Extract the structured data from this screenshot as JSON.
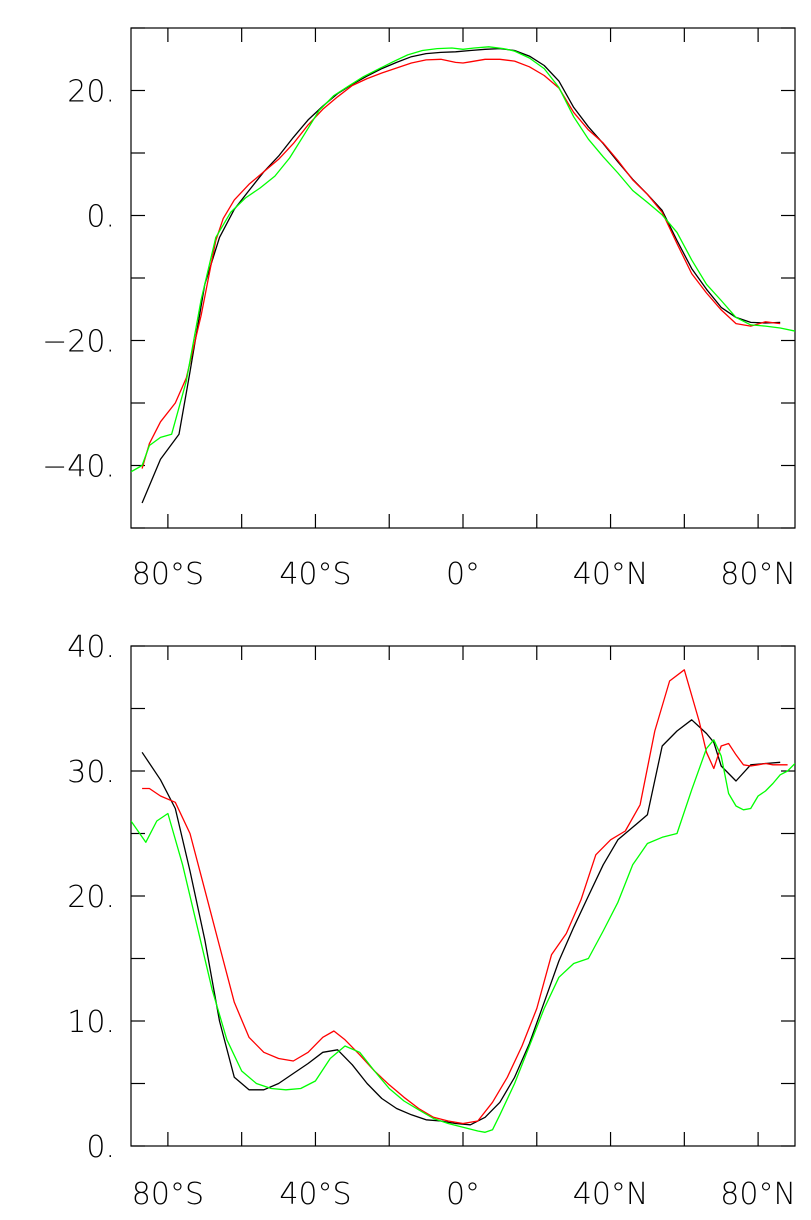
{
  "chart_data": [
    {
      "type": "line",
      "xlim": [
        -90,
        90
      ],
      "ylim": [
        -50,
        30
      ],
      "x_ticks": [
        -80,
        -40,
        0,
        40,
        80
      ],
      "x_tick_labels": [
        "80°S",
        "40°S",
        "0°",
        "40°N",
        "80°N"
      ],
      "x_minor_ticks": [
        -60,
        -20,
        20,
        60
      ],
      "y_ticks": [
        20,
        0,
        -20,
        -40
      ],
      "y_tick_labels": [
        "20.",
        "0.",
        "−20.",
        "−40."
      ],
      "y_minor_ticks": [
        30,
        10,
        -10,
        -30,
        -50
      ],
      "grid": false,
      "series": [
        {
          "color": "#000000",
          "x": [
            -87,
            -82,
            -77,
            -74,
            -70,
            -66,
            -62,
            -58,
            -54,
            -50,
            -46,
            -42,
            -38,
            -34,
            -30,
            -26,
            -22,
            -18,
            -14,
            -10,
            -6,
            -2,
            2,
            6,
            10,
            14,
            18,
            22,
            26,
            30,
            34,
            38,
            42,
            46,
            50,
            54,
            58,
            62,
            66,
            70,
            74,
            78,
            82,
            86
          ],
          "y": [
            -46,
            -39,
            -35,
            -25,
            -11,
            -3.5,
            1,
            4,
            7,
            9.5,
            12.5,
            15.3,
            17.5,
            19.5,
            21,
            22.3,
            23.5,
            24.5,
            25.4,
            25.9,
            26.1,
            26.2,
            26.4,
            26.6,
            26.7,
            26.4,
            25.5,
            24,
            21.5,
            17.3,
            14.2,
            11.5,
            8.6,
            5.8,
            3.4,
            0.8,
            -4,
            -8.5,
            -11.8,
            -14.7,
            -16.3,
            -17.1,
            -17.2,
            -17.1
          ]
        },
        {
          "color": "#ff0000",
          "x": [
            -87,
            -85,
            -82,
            -78,
            -75,
            -71,
            -67,
            -65,
            -62,
            -58,
            -54,
            -50,
            -46,
            -42,
            -38,
            -34,
            -30,
            -26,
            -22,
            -18,
            -14,
            -10,
            -6,
            -2,
            0,
            2,
            6,
            10,
            14,
            18,
            22,
            26,
            30,
            34,
            38,
            42,
            46,
            50,
            54,
            58,
            62,
            66,
            70,
            74,
            78,
            82,
            86
          ],
          "y": [
            -40.5,
            -36.5,
            -33,
            -30,
            -26,
            -16,
            -4,
            -0.5,
            2.5,
            5,
            7,
            9,
            11.5,
            14.5,
            17,
            19,
            20.8,
            21.9,
            22.8,
            23.6,
            24.4,
            24.9,
            25,
            24.5,
            24.4,
            24.6,
            25,
            25,
            24.7,
            23.8,
            22.4,
            20.4,
            16.5,
            13.7,
            11.6,
            8.8,
            5.7,
            3.4,
            0.5,
            -4.5,
            -9.3,
            -12.4,
            -15.1,
            -17.3,
            -17.7,
            -17,
            -17.3
          ]
        },
        {
          "color": "#00ff00",
          "x": [
            -90,
            -87,
            -85,
            -82,
            -79,
            -75,
            -71,
            -67,
            -63,
            -59,
            -55,
            -51,
            -47,
            -43,
            -39,
            -35,
            -31,
            -27,
            -23,
            -19,
            -15,
            -11,
            -7,
            -3,
            0,
            3,
            7,
            11,
            14,
            18,
            22,
            26,
            30,
            34,
            38,
            42,
            46,
            50,
            54,
            58,
            62,
            66,
            70,
            74,
            78,
            82,
            86,
            90
          ],
          "y": [
            -41,
            -40,
            -36.8,
            -35.5,
            -35,
            -26.5,
            -13.5,
            -3.5,
            0.5,
            2.8,
            4.4,
            6.3,
            9.2,
            13,
            16.8,
            19.2,
            20.7,
            22.2,
            23.4,
            24.6,
            25.7,
            26.4,
            26.7,
            26.8,
            26.6,
            26.8,
            27,
            26.7,
            26.3,
            25.2,
            23.5,
            20.5,
            15.8,
            12.2,
            9.4,
            6.8,
            4,
            2.1,
            0.1,
            -2.7,
            -7.1,
            -11,
            -13.6,
            -16.3,
            -17.5,
            -17.7,
            -18,
            -18.5
          ]
        }
      ]
    },
    {
      "type": "line",
      "xlim": [
        -90,
        90
      ],
      "ylim": [
        0,
        40
      ],
      "x_ticks": [
        -80,
        -40,
        0,
        40,
        80
      ],
      "x_tick_labels": [
        "80°S",
        "40°S",
        "0°",
        "40°N",
        "80°N"
      ],
      "x_minor_ticks": [
        -60,
        -20,
        20,
        60
      ],
      "y_ticks": [
        40,
        30,
        20,
        10,
        0
      ],
      "y_tick_labels": [
        "40.",
        "30.",
        "20.",
        "10.",
        "0."
      ],
      "y_minor_ticks": [
        35,
        25,
        15,
        5
      ],
      "grid": false,
      "series": [
        {
          "color": "#000000",
          "x": [
            -87,
            -82,
            -78,
            -74,
            -70,
            -66,
            -62,
            -58,
            -54,
            -50,
            -46,
            -42,
            -38,
            -34,
            -30,
            -26,
            -22,
            -18,
            -14,
            -10,
            -6,
            -2,
            2,
            6,
            10,
            14,
            18,
            22,
            26,
            30,
            34,
            38,
            42,
            46,
            50,
            54,
            58,
            62,
            66,
            68,
            70,
            74,
            78,
            82,
            86
          ],
          "y": [
            31.5,
            29.3,
            27,
            22,
            16.5,
            10,
            5.5,
            4.5,
            4.5,
            5,
            5.8,
            6.6,
            7.5,
            7.7,
            6.5,
            5,
            3.8,
            3,
            2.5,
            2.1,
            2,
            1.8,
            1.7,
            2.3,
            3.5,
            5.5,
            8.2,
            11.5,
            14.8,
            17.5,
            20,
            22.5,
            24.5,
            25.5,
            26.5,
            32,
            33.2,
            34.1,
            33,
            32.3,
            30.4,
            29.2,
            30.5,
            30.6,
            30.7
          ]
        },
        {
          "color": "#ff0000",
          "x": [
            -87,
            -85,
            -82,
            -78,
            -74,
            -70,
            -66,
            -62,
            -58,
            -54,
            -50,
            -46,
            -42,
            -38,
            -35,
            -32,
            -28,
            -24,
            -20,
            -16,
            -12,
            -8,
            -4,
            0,
            4,
            8,
            12,
            16,
            20,
            24,
            28,
            32,
            36,
            40,
            44,
            48,
            52,
            56,
            60,
            64,
            66,
            68,
            70,
            72,
            74,
            76,
            78,
            80,
            82,
            84,
            88
          ],
          "y": [
            28.6,
            28.6,
            28,
            27.5,
            25,
            20.5,
            16,
            11.5,
            8.7,
            7.5,
            7,
            6.8,
            7.5,
            8.7,
            9.2,
            8.5,
            7.3,
            6,
            4.9,
            3.9,
            3,
            2.3,
            2,
            1.8,
            2,
            3.5,
            5.5,
            8,
            11,
            15.3,
            17,
            19.7,
            23.3,
            24.5,
            25.2,
            27.3,
            33.2,
            37.2,
            38.1,
            34,
            31.5,
            30.2,
            32,
            32.2,
            31.3,
            30.5,
            30.4,
            30.5,
            30.6,
            30.5,
            30.5
          ]
        },
        {
          "color": "#00ff00",
          "x": [
            -90,
            -86,
            -83,
            -80,
            -76,
            -72,
            -68,
            -64,
            -60,
            -56,
            -52,
            -48,
            -44,
            -40,
            -36,
            -32,
            -28,
            -24,
            -20,
            -16,
            -12,
            -8,
            -4,
            0,
            4,
            6,
            8,
            10,
            14,
            18,
            22,
            26,
            30,
            34,
            38,
            42,
            46,
            50,
            54,
            58,
            62,
            66,
            68,
            70,
            72,
            74,
            76,
            78,
            80,
            82,
            84,
            86,
            88,
            90
          ],
          "y": [
            26,
            24.3,
            26,
            26.6,
            22.5,
            17.5,
            12.5,
            8.5,
            6,
            5,
            4.6,
            4.5,
            4.6,
            5.2,
            7,
            8,
            7.5,
            6,
            4.6,
            3.6,
            2.9,
            2.2,
            1.8,
            1.5,
            1.2,
            1.1,
            1.3,
            2.5,
            5,
            8,
            11,
            13.5,
            14.6,
            15,
            17.2,
            19.5,
            22.5,
            24.2,
            24.7,
            25,
            28.5,
            31.8,
            32.5,
            31.2,
            28.2,
            27.2,
            26.9,
            27,
            28,
            28.4,
            29,
            29.7,
            30,
            30.6
          ]
        }
      ]
    }
  ]
}
